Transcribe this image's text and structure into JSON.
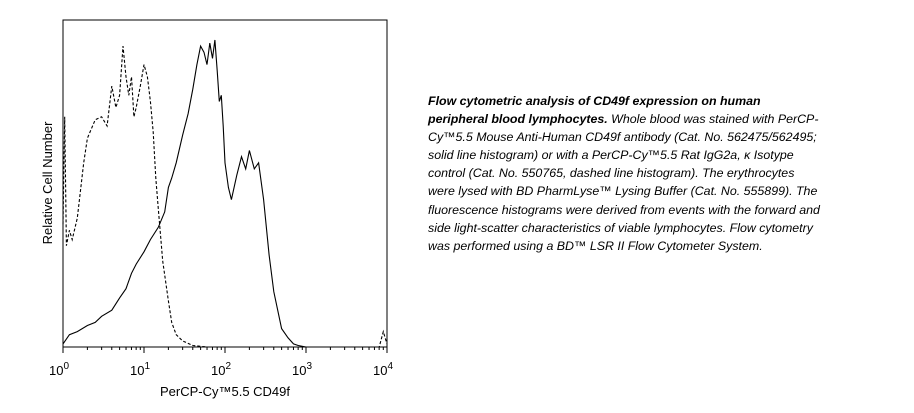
{
  "chart_data": {
    "type": "histogram",
    "xlabel": "PerCP-Cy™5.5 CD49f",
    "ylabel": "Relative Cell Number",
    "xscale": "log",
    "xlim": [
      1,
      10000
    ],
    "ylim": [
      0,
      1
    ],
    "grid": false,
    "x_ticks": [
      {
        "value": 1,
        "base": "10",
        "exp": "0"
      },
      {
        "value": 10,
        "base": "10",
        "exp": "1"
      },
      {
        "value": 100,
        "base": "10",
        "exp": "2"
      },
      {
        "value": 1000,
        "base": "10",
        "exp": "3"
      },
      {
        "value": 10000,
        "base": "10",
        "exp": "4"
      }
    ],
    "series": [
      {
        "style": "solid",
        "x": [
          1.0,
          1.2,
          1.5,
          2.0,
          2.5,
          3.0,
          4.0,
          5.0,
          6.0,
          7.0,
          8.0,
          10.0,
          12.0,
          15.0,
          18.0,
          20.0,
          22.0,
          25.0,
          30.0,
          35.0,
          40.0,
          45.0,
          50.0,
          55.0,
          60.0,
          65.0,
          70.0,
          75.0,
          80.0,
          85.0,
          90.0,
          95.0,
          100.0,
          110.0,
          120.0,
          140.0,
          160.0,
          180.0,
          200.0,
          230.0,
          260.0,
          300.0,
          350.0,
          400.0,
          500.0,
          600.0,
          700.0,
          800.0,
          1000.0,
          2000.0,
          5000.0,
          10000.0
        ],
        "y": [
          0.01,
          0.04,
          0.05,
          0.07,
          0.08,
          0.1,
          0.12,
          0.16,
          0.19,
          0.24,
          0.27,
          0.31,
          0.35,
          0.39,
          0.44,
          0.52,
          0.55,
          0.6,
          0.69,
          0.76,
          0.84,
          0.92,
          0.98,
          0.96,
          0.92,
          0.99,
          0.94,
          1.0,
          0.9,
          0.8,
          0.82,
          0.72,
          0.6,
          0.52,
          0.48,
          0.56,
          0.62,
          0.58,
          0.64,
          0.58,
          0.6,
          0.48,
          0.3,
          0.18,
          0.06,
          0.03,
          0.01,
          0.005,
          0.0,
          0.0,
          0.0,
          0.0
        ]
      },
      {
        "style": "dashed",
        "x": [
          1.0,
          1.05,
          1.1,
          1.2,
          1.3,
          1.5,
          1.8,
          2.0,
          2.5,
          3.0,
          3.5,
          4.0,
          4.5,
          5.0,
          5.5,
          6.0,
          6.5,
          7.0,
          7.5,
          8.0,
          9.0,
          10.0,
          11.0,
          12.0,
          13.0,
          14.0,
          15.0,
          17.0,
          20.0,
          22.0,
          25.0,
          30.0,
          40.0,
          60.0,
          100.0,
          1000.0,
          5000.0,
          8000.0,
          9000.0,
          10000.0
        ],
        "y": [
          0.4,
          0.75,
          0.33,
          0.38,
          0.35,
          0.42,
          0.6,
          0.68,
          0.74,
          0.75,
          0.72,
          0.85,
          0.78,
          0.82,
          0.98,
          0.88,
          0.82,
          0.88,
          0.75,
          0.78,
          0.85,
          0.92,
          0.88,
          0.8,
          0.7,
          0.55,
          0.45,
          0.28,
          0.15,
          0.08,
          0.04,
          0.02,
          0.005,
          0.0,
          0.0,
          0.0,
          0.0,
          0.0,
          0.05,
          0.01
        ]
      }
    ]
  },
  "caption": {
    "title": "Flow cytometric analysis of CD49f expression on human peripheral blood lymphocytes.",
    "body": "Whole blood was stained with PerCP-Cy™5.5 Mouse Anti-Human CD49f antibody (Cat. No. 562475/562495; solid line histogram) or with a PerCP-Cy™5.5 Rat IgG2a, κ Isotype control (Cat. No. 550765, dashed line histogram). The erythrocytes were lysed with BD PharmLyse™ Lysing Buffer (Cat. No. 555899). The fluorescence histograms were derived from events with the forward and side light-scatter characteristics of viable lymphocytes. Flow cytometry was performed using a BD™ LSR II Flow Cytometer System."
  }
}
